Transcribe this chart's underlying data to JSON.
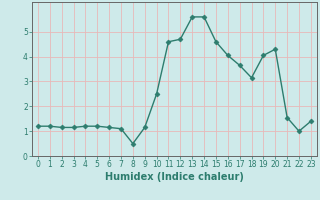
{
  "x": [
    0,
    1,
    2,
    3,
    4,
    5,
    6,
    7,
    8,
    9,
    10,
    11,
    12,
    13,
    14,
    15,
    16,
    17,
    18,
    19,
    20,
    21,
    22,
    23
  ],
  "y": [
    1.2,
    1.2,
    1.15,
    1.15,
    1.2,
    1.2,
    1.15,
    1.1,
    0.5,
    1.15,
    2.5,
    4.6,
    4.7,
    5.6,
    5.6,
    4.6,
    4.05,
    3.65,
    3.15,
    4.05,
    4.3,
    1.55,
    1.0,
    1.4
  ],
  "line_color": "#2d7d6e",
  "marker": "D",
  "markersize": 2.5,
  "linewidth": 1.0,
  "xlabel": "Humidex (Indice chaleur)",
  "xlim": [
    -0.5,
    23.5
  ],
  "ylim": [
    0,
    6.2
  ],
  "yticks": [
    0,
    1,
    2,
    3,
    4,
    5
  ],
  "xticks": [
    0,
    1,
    2,
    3,
    4,
    5,
    6,
    7,
    8,
    9,
    10,
    11,
    12,
    13,
    14,
    15,
    16,
    17,
    18,
    19,
    20,
    21,
    22,
    23
  ],
  "bg_color": "#ceeaea",
  "grid_color": "#e8b8b8",
  "xlabel_fontsize": 7,
  "tick_fontsize": 5.5
}
